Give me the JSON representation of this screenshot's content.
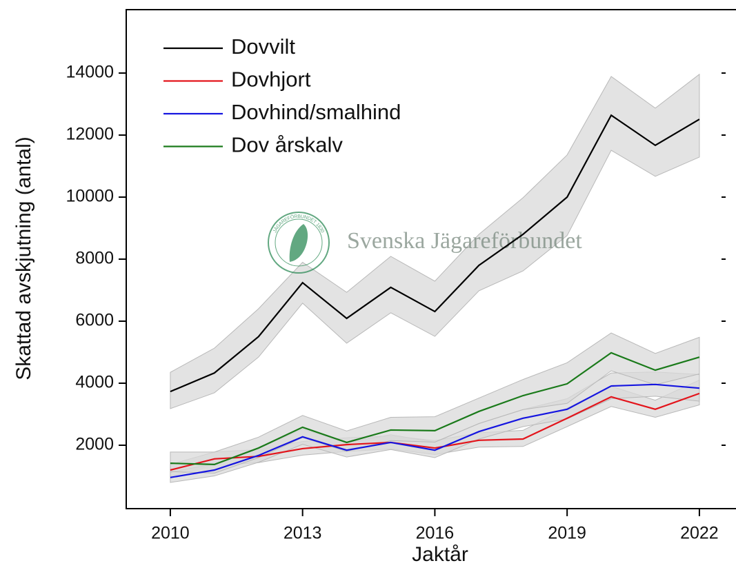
{
  "chart_data": {
    "type": "line",
    "x_label": "Jaktår",
    "y_label": "Skattad avskjutning (antal)",
    "watermark": "Svenska Jägareförbundet",
    "watermark_logo_text": "JÄGAREFÖRBUNDET 1830",
    "x": [
      2010,
      2011,
      2012,
      2013,
      2014,
      2015,
      2016,
      2017,
      2018,
      2019,
      2020,
      2021,
      2022
    ],
    "xlim": [
      2009,
      2023
    ],
    "xticks": [
      2010,
      2013,
      2016,
      2019,
      2022
    ],
    "ylim": [
      0,
      16000
    ],
    "yticks": [
      2000,
      4000,
      6000,
      8000,
      10000,
      12000,
      14000
    ],
    "legend": "upper left",
    "band_color": "#d9d9d9",
    "series": [
      {
        "name": "Dovvilt",
        "color": "#000000",
        "values": [
          3730,
          4330,
          5500,
          7240,
          6090,
          7090,
          6310,
          7800,
          8800,
          10000,
          12640,
          11670,
          12510
        ],
        "lower": [
          3180,
          3690,
          4840,
          6580,
          5290,
          6270,
          5510,
          6980,
          7620,
          8760,
          11510,
          10670,
          11290
        ],
        "upper": [
          4350,
          5130,
          6400,
          7900,
          6930,
          8090,
          7290,
          8800,
          9980,
          11360,
          13890,
          12870,
          13960
        ]
      },
      {
        "name": "Dovhjort",
        "color": "#e3141b",
        "values": [
          1200,
          1560,
          1640,
          1890,
          2020,
          2090,
          1910,
          2160,
          2200,
          2870,
          3560,
          3160,
          3670
        ],
        "lower": [
          1000,
          1350,
          1440,
          1680,
          1800,
          1880,
          1700,
          1940,
          1960,
          2600,
          3250,
          2900,
          3300
        ],
        "upper": [
          1380,
          1780,
          1860,
          2120,
          2240,
          2300,
          2150,
          2400,
          2480,
          3200,
          3900,
          3450,
          4100
        ]
      },
      {
        "name": "Dovhind/smalhind",
        "color": "#1515e0",
        "values": [
          960,
          1200,
          1670,
          2270,
          1840,
          2090,
          1840,
          2440,
          2870,
          3160,
          3910,
          3960,
          3840
        ],
        "lower": [
          800,
          1010,
          1450,
          2030,
          1620,
          1860,
          1600,
          2200,
          2600,
          2850,
          3500,
          3580,
          3420
        ],
        "upper": [
          1130,
          1400,
          1900,
          2520,
          2080,
          2340,
          2100,
          2700,
          3150,
          3500,
          4330,
          4360,
          4280
        ]
      },
      {
        "name": "Dov årskalv",
        "color": "#1a7a1a",
        "values": [
          1420,
          1380,
          1910,
          2580,
          2090,
          2490,
          2470,
          3090,
          3600,
          3980,
          4980,
          4420,
          4840
        ],
        "lower": [
          1150,
          1100,
          1600,
          2250,
          1800,
          2150,
          2100,
          2700,
          3150,
          3350,
          4400,
          3950,
          4300
        ],
        "upper": [
          1780,
          1780,
          2260,
          2960,
          2460,
          2900,
          2920,
          3520,
          4120,
          4660,
          5620,
          4960,
          5480
        ]
      }
    ]
  }
}
